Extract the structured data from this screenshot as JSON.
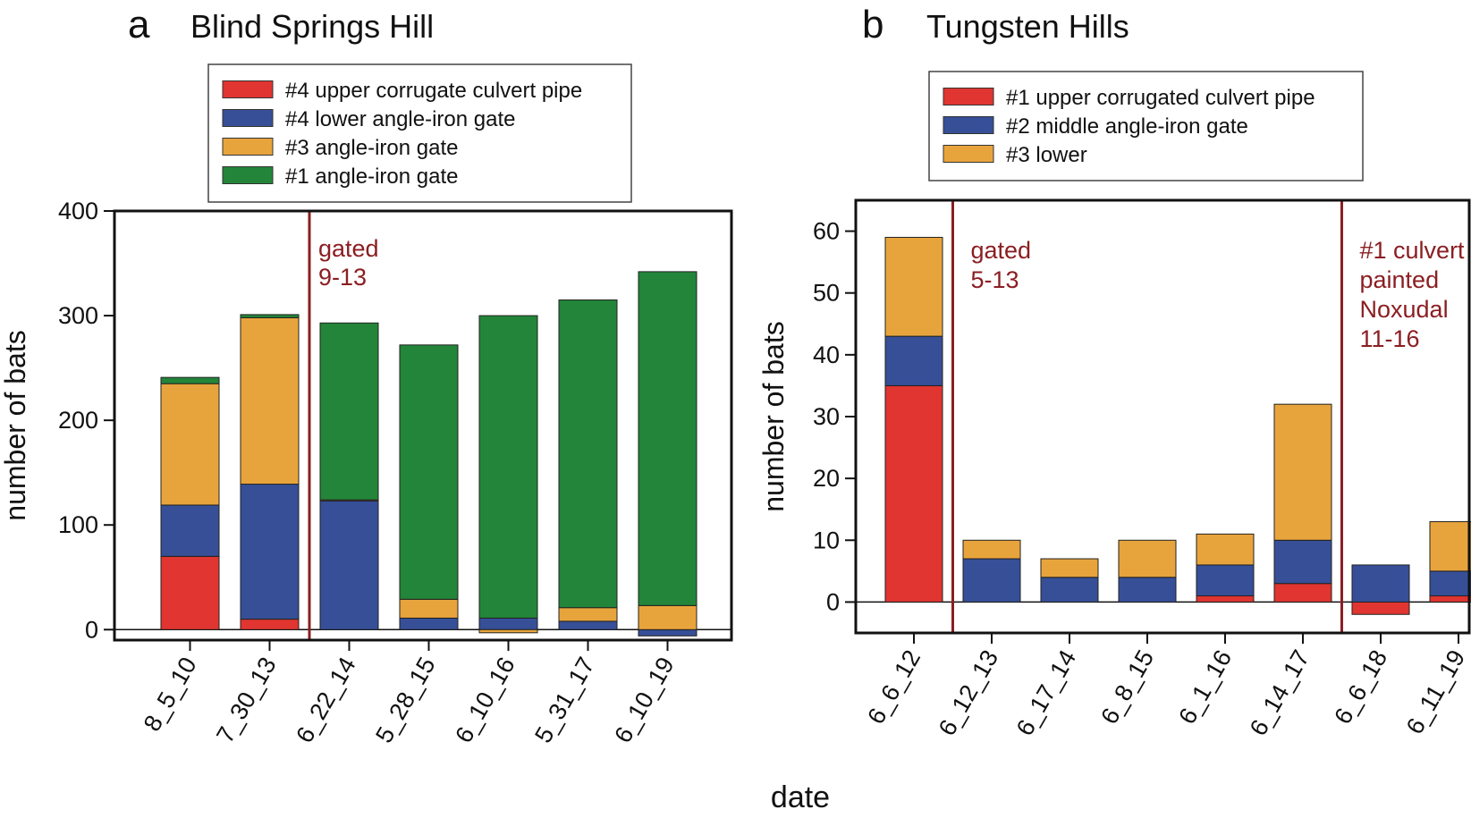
{
  "figure": {
    "xlabel": "date"
  },
  "chart_data": [
    {
      "id": "a",
      "type": "bar",
      "stacked": true,
      "panel_letter": "a",
      "title": "Blind Springs Hill",
      "xlabel": "date",
      "ylabel": "number of bats",
      "ylim": [
        -10,
        400
      ],
      "yticks": [
        0,
        100,
        200,
        300,
        400
      ],
      "categories": [
        "8_5_10",
        "7_30_13",
        "6_22_14",
        "5_28_15",
        "6_10_16",
        "5_31_17",
        "6_10_19"
      ],
      "series": [
        {
          "name": "#4 upper corrugate culvert pipe",
          "color": "#e03530",
          "values": [
            70,
            10,
            0,
            0,
            0,
            0,
            0
          ]
        },
        {
          "name": "#4 lower angle-iron gate",
          "color": "#364f97",
          "values": [
            49,
            129,
            123,
            11,
            11,
            8,
            -6
          ]
        },
        {
          "name": "#3 angle-iron gate",
          "color": "#e8a43c",
          "values": [
            116,
            159,
            1,
            18,
            -3,
            13,
            23
          ]
        },
        {
          "name": "#1 angle-iron gate",
          "color": "#238539",
          "values": [
            6,
            3,
            169,
            243,
            289,
            294,
            319
          ]
        }
      ],
      "legend_order": [
        0,
        1,
        2,
        3
      ],
      "annotations": [
        {
          "after_category": 1,
          "lines": [
            "gated",
            "9-13"
          ],
          "color": "#8b1e22"
        }
      ]
    },
    {
      "id": "b",
      "type": "bar",
      "stacked": true,
      "panel_letter": "b",
      "title": "Tungsten Hills",
      "xlabel": "date",
      "ylabel": "number of bats",
      "ylim": [
        -5,
        65
      ],
      "yticks": [
        0,
        10,
        20,
        30,
        40,
        50,
        60
      ],
      "categories": [
        "6_6_12",
        "6_12_13",
        "6_17_14",
        "6_8_15",
        "6_1_16",
        "6_14_17",
        "6_6_18",
        "6_11_19"
      ],
      "series": [
        {
          "name": "#1 upper corrugated culvert pipe",
          "color": "#e03530",
          "values": [
            35,
            0,
            0,
            0,
            1,
            3,
            -2,
            1
          ]
        },
        {
          "name": "#2 middle angle-iron gate",
          "color": "#364f97",
          "values": [
            8,
            7,
            4,
            4,
            5,
            7,
            6,
            4
          ]
        },
        {
          "name": "#3 lower",
          "color": "#e8a43c",
          "values": [
            16,
            3,
            3,
            6,
            5,
            22,
            0,
            8
          ]
        }
      ],
      "legend_order": [
        0,
        1,
        2
      ],
      "annotations": [
        {
          "after_category": 0,
          "lines": [
            "gated",
            "5-13"
          ],
          "color": "#8b1e22"
        },
        {
          "after_category": 5,
          "lines": [
            "#1 culvert",
            "painted",
            "Noxudal",
            "11-16"
          ],
          "color": "#8b1e22"
        }
      ]
    }
  ]
}
